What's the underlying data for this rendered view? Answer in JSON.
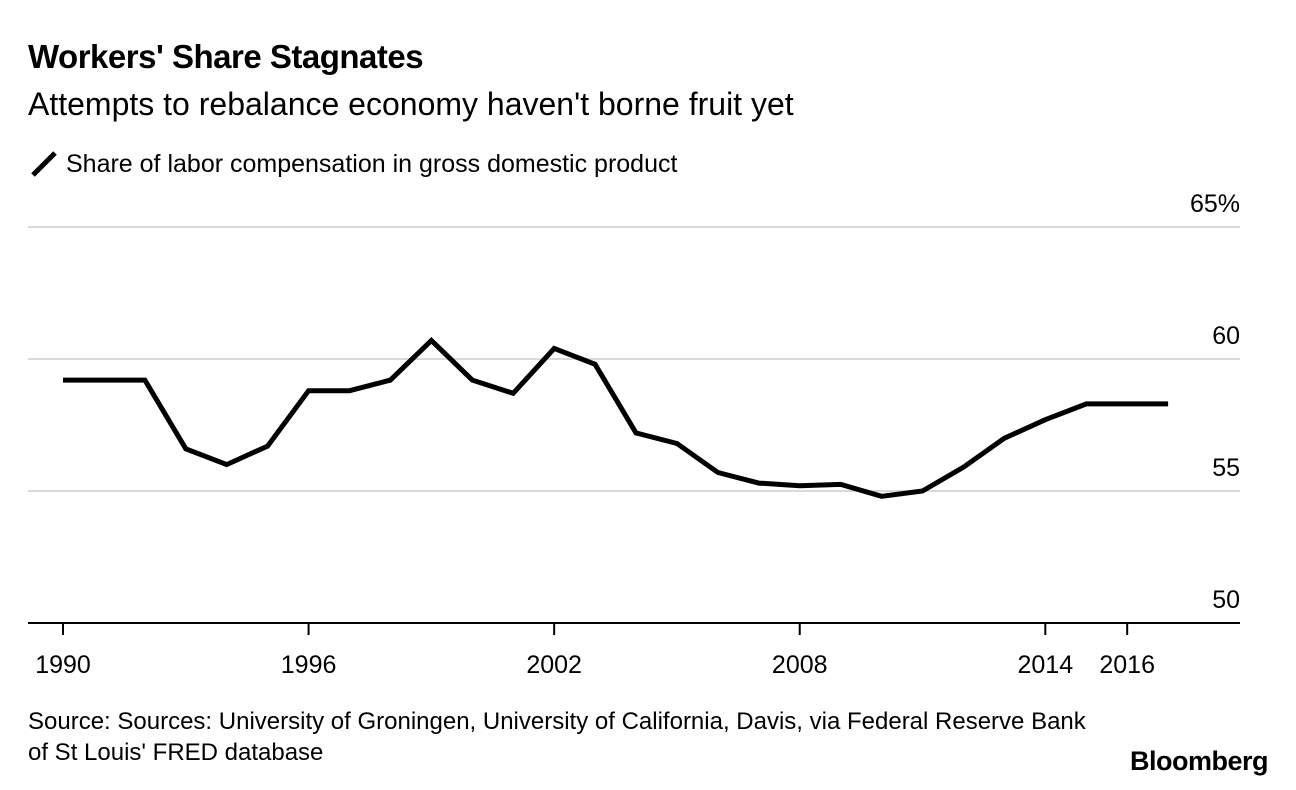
{
  "chart_data": {
    "type": "line",
    "title": "Workers' Share Stagnates",
    "subtitle": "Attempts to rebalance economy haven't borne fruit yet",
    "series": [
      {
        "name": "Share of labor compensation in gross domestic product",
        "x": [
          1990,
          1991,
          1992,
          1993,
          1994,
          1995,
          1996,
          1997,
          1998,
          1999,
          2000,
          2001,
          2002,
          2003,
          2004,
          2005,
          2006,
          2007,
          2008,
          2009,
          2010,
          2011,
          2012,
          2013,
          2014,
          2015,
          2016,
          2017
        ],
        "values": [
          59.2,
          59.2,
          59.2,
          56.6,
          56.0,
          56.7,
          58.8,
          58.8,
          59.2,
          60.7,
          59.2,
          58.7,
          60.4,
          59.8,
          57.2,
          56.8,
          55.7,
          55.3,
          55.2,
          55.25,
          54.8,
          55.0,
          55.9,
          57.0,
          57.7,
          58.3,
          58.3,
          58.3
        ]
      }
    ],
    "ylim": [
      50,
      65
    ],
    "yticks": [
      50,
      55,
      60,
      65
    ],
    "ytick_labels": [
      "50",
      "55",
      "60",
      "65%"
    ],
    "xlim": [
      1989.2,
      2018.6
    ],
    "xticks": [
      1990,
      1996,
      2002,
      2008,
      2014,
      2016
    ],
    "xtick_labels": [
      "1990",
      "1996",
      "2002",
      "2008",
      "2014",
      "2016"
    ],
    "xlabel": "",
    "ylabel": "",
    "grid": true,
    "legend": "top-left"
  },
  "legend_label": "Share of labor compensation in gross domestic product",
  "source": "Source: Sources: University of Groningen, University of California, Davis, via Federal Reserve Bank of St Louis' FRED database",
  "brand": "Bloomberg",
  "colors": {
    "line": "#000000",
    "grid": "#d9d9d9",
    "axis": "#000000",
    "background": "#ffffff"
  }
}
